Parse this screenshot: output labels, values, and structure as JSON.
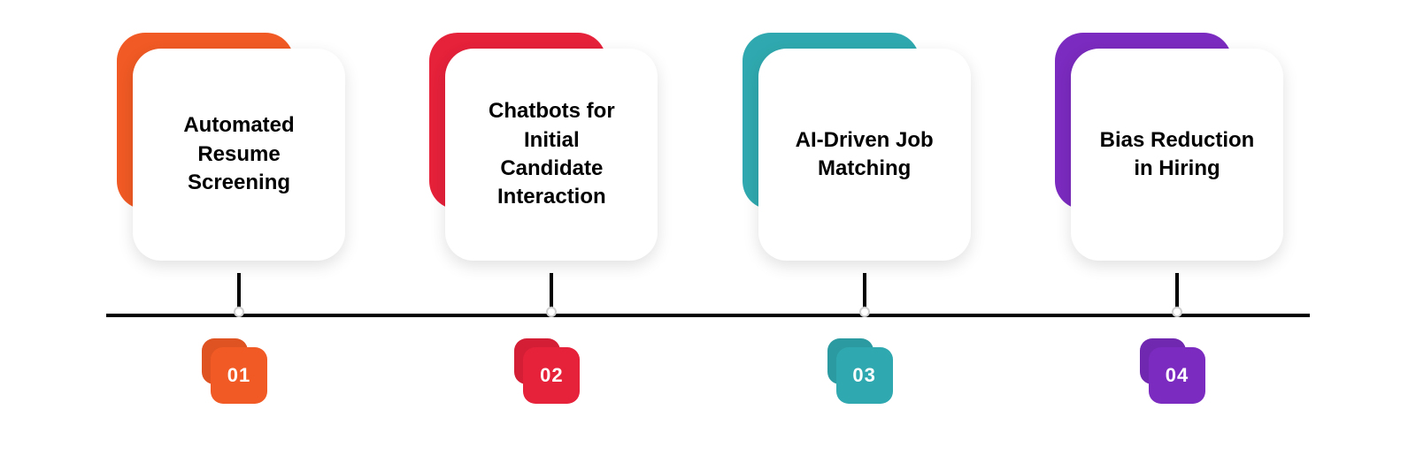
{
  "diagram": {
    "type": "timeline-infographic",
    "background_color": "#ffffff",
    "axis_color": "#000000",
    "axis_thickness": 4,
    "card_radius": 32,
    "card_bg": "#ffffff",
    "card_shadow": "0 6px 18px rgba(0,0,0,0.12)",
    "label_fontsize": 24,
    "label_fontweight": 600,
    "badge_fontsize": 22,
    "badge_fontweight": 700,
    "badge_text_color": "#ffffff",
    "steps": [
      {
        "num": "01",
        "label": "Automated Resume Screening",
        "color": "#f15a24"
      },
      {
        "num": "02",
        "label": "Chatbots for Initial Candidate Interaction",
        "color": "#e6213a"
      },
      {
        "num": "03",
        "label": "AI-Driven Job Matching",
        "color": "#2fa9af"
      },
      {
        "num": "04",
        "label": "Bias Reduction in Hiring",
        "color": "#7b2bbf"
      }
    ]
  }
}
